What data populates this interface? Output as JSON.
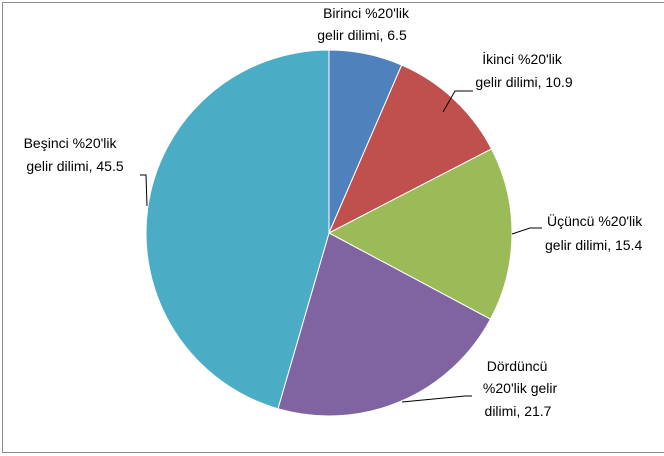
{
  "chart_data": {
    "type": "pie",
    "title": "",
    "slices": [
      {
        "label_lines": [
          "Birinci %20'lik",
          "gelir dilimi, 6.5"
        ],
        "value": 6.5,
        "color": "#4F81BD"
      },
      {
        "label_lines": [
          "İkinci %20'lik",
          "gelir dilimi, 10.9"
        ],
        "value": 10.9,
        "color": "#C0504D"
      },
      {
        "label_lines": [
          "Üçüncü %20'lik",
          "gelir dilimi, 15.4"
        ],
        "value": 15.4,
        "color": "#9BBB59"
      },
      {
        "label_lines": [
          "Dördüncü",
          "%20'lik gelir",
          "dilimi, 21.7"
        ],
        "value": 21.7,
        "color": "#8064A2"
      },
      {
        "label_lines": [
          "Beşinci %20'lik",
          "gelir dilimi, 45.5"
        ],
        "value": 45.5,
        "color": "#4BACC6"
      }
    ],
    "start_angle": "top",
    "direction": "clockwise",
    "legend": "none",
    "data_labels": "outside with leader lines"
  }
}
